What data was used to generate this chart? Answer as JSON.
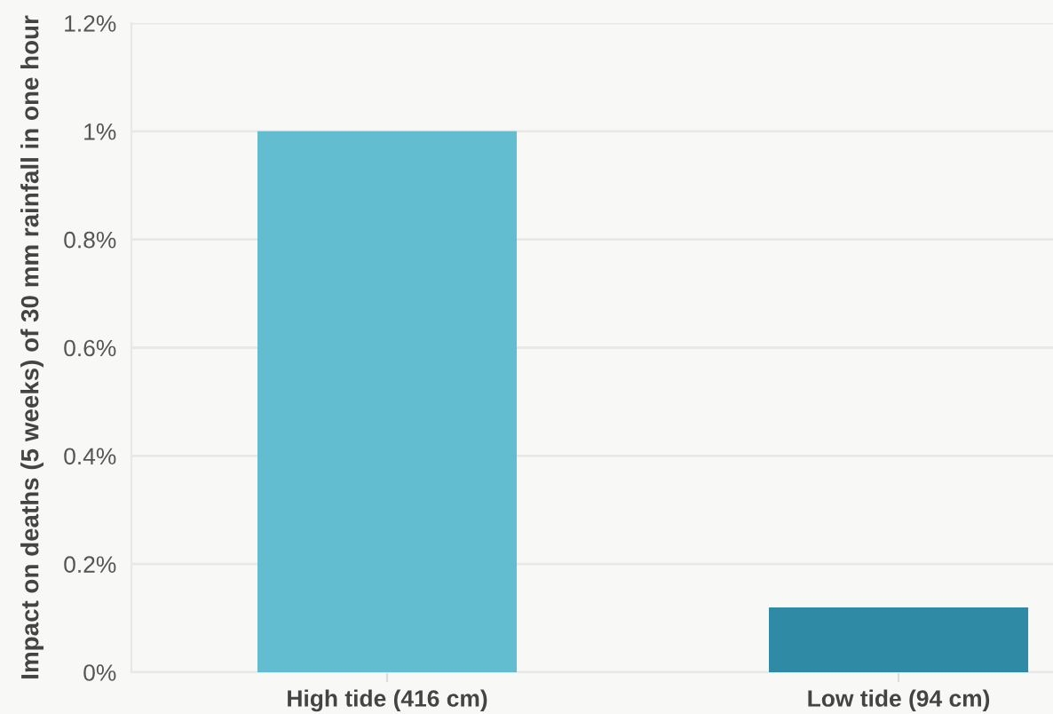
{
  "chart_data": {
    "type": "bar",
    "ylabel": "Impact on deaths (5 weeks) of 30 mm rainfall in one hour",
    "categories": [
      "High tide (416 cm)",
      "Low tide (94 cm)"
    ],
    "values": [
      1.0,
      0.12
    ],
    "colors": [
      "#61bdcf",
      "#2f8aa6"
    ],
    "ylim": [
      0,
      1.2
    ],
    "yticks": [
      {
        "value": 0,
        "label": "0%"
      },
      {
        "value": 0.2,
        "label": "0.2%"
      },
      {
        "value": 0.4,
        "label": "0.4%"
      },
      {
        "value": 0.6,
        "label": "0.6%"
      },
      {
        "value": 0.8,
        "label": "0.8%"
      },
      {
        "value": 1,
        "label": "1%"
      },
      {
        "value": 1.2,
        "label": "1.2%"
      }
    ],
    "grid": "y",
    "legend": false
  }
}
